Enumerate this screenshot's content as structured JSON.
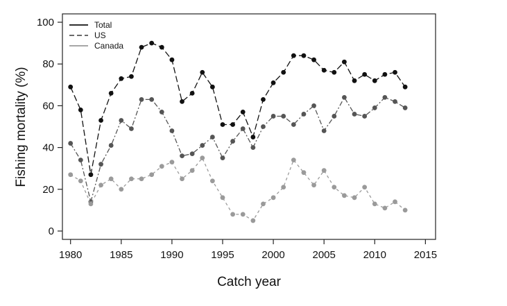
{
  "chart_data": {
    "type": "line",
    "title": "",
    "xlabel": "Catch year",
    "ylabel": "Fishing mortality (%)",
    "xlim": [
      1979.2,
      2016
    ],
    "ylim": [
      -4,
      104
    ],
    "xticks": [
      1980,
      1985,
      1990,
      1995,
      2000,
      2005,
      2010,
      2015
    ],
    "yticks": [
      0,
      20,
      40,
      60,
      80,
      100
    ],
    "grid": false,
    "legend_position": "top-left",
    "x": [
      1980,
      1981,
      1982,
      1983,
      1984,
      1985,
      1986,
      1987,
      1988,
      1989,
      1990,
      1991,
      1992,
      1993,
      1994,
      1995,
      1996,
      1997,
      1998,
      1999,
      2000,
      2001,
      2002,
      2003,
      2004,
      2005,
      2006,
      2007,
      2008,
      2009,
      2010,
      2011,
      2012,
      2013
    ],
    "series": [
      {
        "name": "Total",
        "color": "#111111",
        "line_style": "solid",
        "values": [
          69,
          58,
          27,
          53,
          66,
          73,
          74,
          88,
          90,
          88,
          82,
          62,
          66,
          76,
          69,
          51,
          51,
          57,
          45,
          63,
          71,
          76,
          84,
          84,
          82,
          77,
          76,
          81,
          72,
          75,
          72,
          75,
          76,
          69
        ]
      },
      {
        "name": "US",
        "color": "#555555",
        "line_style": "dashed",
        "values": [
          42,
          34,
          14,
          32,
          41,
          53,
          49,
          63,
          63,
          57,
          48,
          36,
          37,
          41,
          45,
          35,
          43,
          49,
          40,
          50,
          55,
          55,
          51,
          56,
          60,
          48,
          55,
          64,
          56,
          55,
          59,
          64,
          62,
          59
        ]
      },
      {
        "name": "Canada",
        "color": "#9a9a9a",
        "line_style": "solid",
        "values": [
          27,
          24,
          13,
          22,
          25,
          20,
          25,
          25,
          27,
          31,
          33,
          25,
          29,
          35,
          24,
          16,
          8,
          8,
          5,
          13,
          16,
          21,
          34,
          28,
          22,
          29,
          21,
          17,
          16,
          21,
          13,
          11,
          14,
          10
        ]
      }
    ]
  }
}
